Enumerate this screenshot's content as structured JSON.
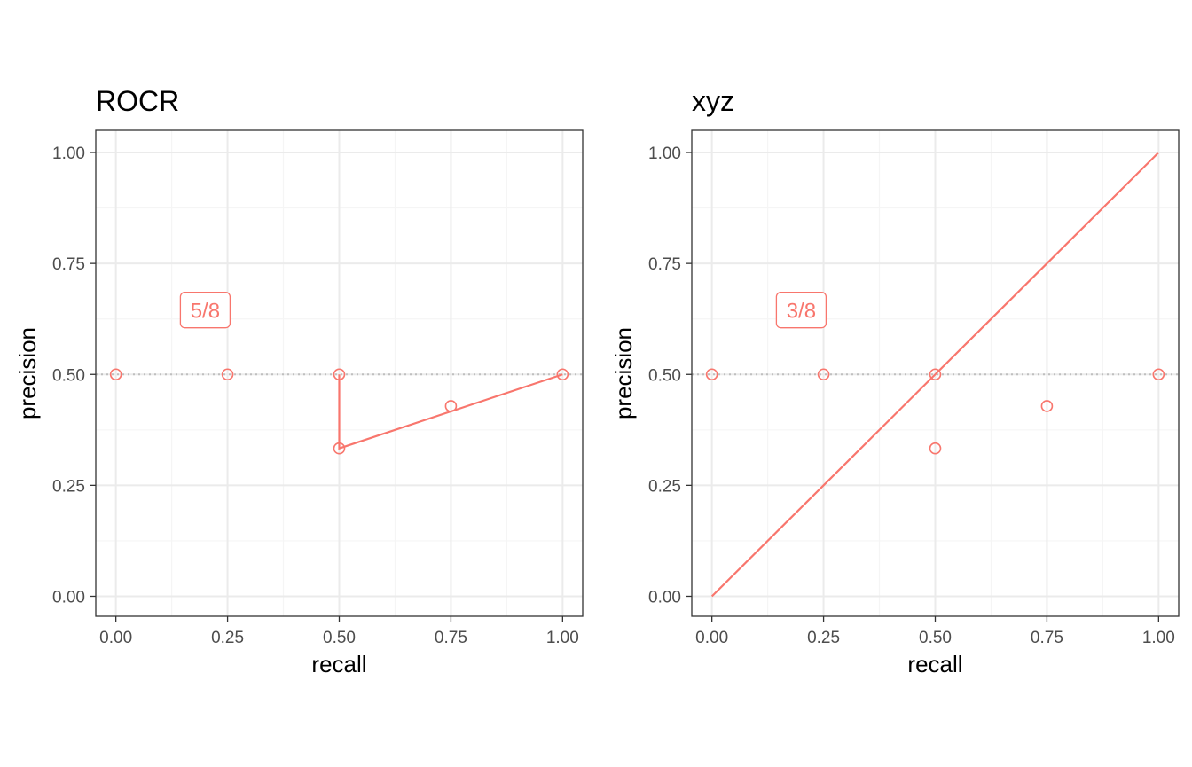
{
  "colors": {
    "series": "#F8766D",
    "grid_major": "#EBEBEB",
    "grid_minor": "#F5F5F5",
    "panel_border": "#333333",
    "baseline": "#BFBFBF",
    "tick_text": "#4D4D4D"
  },
  "chart_data": [
    {
      "type": "line",
      "title": "ROCR",
      "xlabel": "recall",
      "ylabel": "precision",
      "xlim": [
        -0.045,
        1.045
      ],
      "ylim": [
        -0.045,
        1.05
      ],
      "xticks": [
        0,
        0.25,
        0.5,
        0.75,
        1
      ],
      "xtick_labels": [
        "0.00",
        "0.25",
        "0.50",
        "0.75",
        "1.00"
      ],
      "yticks": [
        0,
        0.25,
        0.5,
        0.75,
        1
      ],
      "ytick_labels": [
        "0.00",
        "0.25",
        "0.50",
        "0.75",
        "1.00"
      ],
      "grid": true,
      "baseline": 0.5,
      "points": [
        {
          "x": 0,
          "y": 0.5
        },
        {
          "x": 0.25,
          "y": 0.5
        },
        {
          "x": 0.5,
          "y": 0.5
        },
        {
          "x": 0.5,
          "y": 0.3333
        },
        {
          "x": 0.75,
          "y": 0.4286
        },
        {
          "x": 1,
          "y": 0.5
        }
      ],
      "line": [
        {
          "x": 0.5,
          "y": 0.5
        },
        {
          "x": 0.5,
          "y": 0.3333
        },
        {
          "x": 1,
          "y": 0.5
        }
      ],
      "annotation": {
        "text": "5/8",
        "x": 0.2,
        "y": 0.645
      }
    },
    {
      "type": "line",
      "title": "xyz",
      "xlabel": "recall",
      "ylabel": "precision",
      "xlim": [
        -0.045,
        1.045
      ],
      "ylim": [
        -0.045,
        1.05
      ],
      "xticks": [
        0,
        0.25,
        0.5,
        0.75,
        1
      ],
      "xtick_labels": [
        "0.00",
        "0.25",
        "0.50",
        "0.75",
        "1.00"
      ],
      "yticks": [
        0,
        0.25,
        0.5,
        0.75,
        1
      ],
      "ytick_labels": [
        "0.00",
        "0.25",
        "0.50",
        "0.75",
        "1.00"
      ],
      "grid": true,
      "baseline": 0.5,
      "points": [
        {
          "x": 0,
          "y": 0.5
        },
        {
          "x": 0.25,
          "y": 0.5
        },
        {
          "x": 0.5,
          "y": 0.5
        },
        {
          "x": 0.5,
          "y": 0.3333
        },
        {
          "x": 0.75,
          "y": 0.4286
        },
        {
          "x": 1,
          "y": 0.5
        }
      ],
      "line": [
        {
          "x": 0,
          "y": 0
        },
        {
          "x": 1,
          "y": 1
        }
      ],
      "annotation": {
        "text": "3/8",
        "x": 0.2,
        "y": 0.645
      }
    }
  ]
}
